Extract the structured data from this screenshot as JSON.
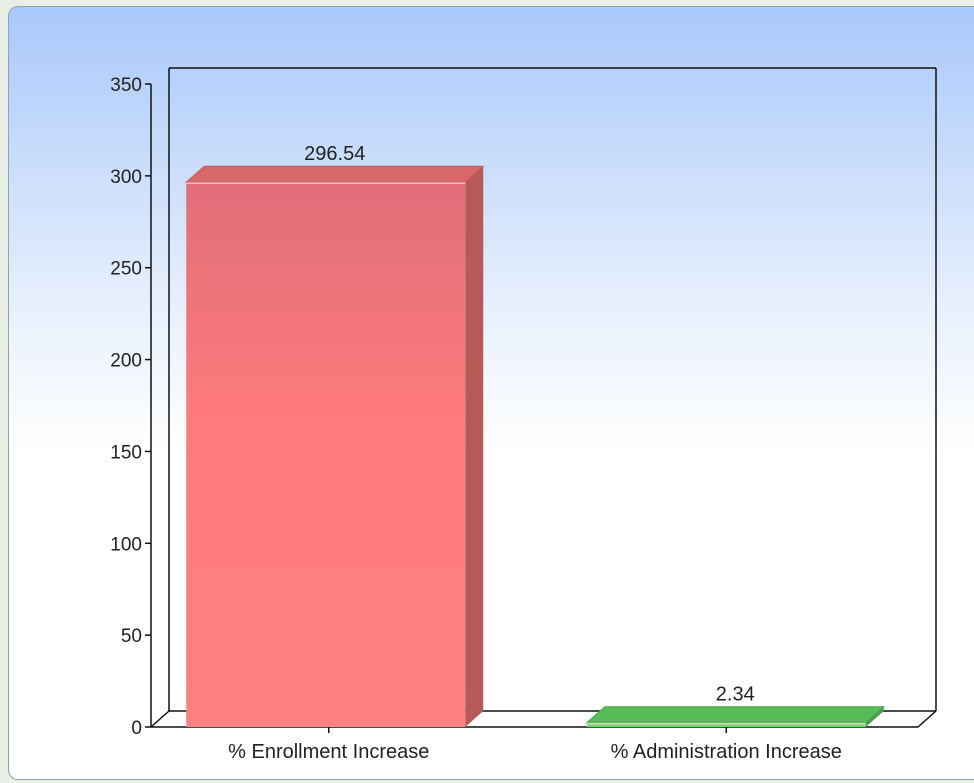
{
  "chart_data": {
    "type": "bar",
    "categories": [
      "% Enrollment Increase",
      "% Administration Increase"
    ],
    "values": [
      296.54,
      2.34
    ],
    "value_labels": [
      "296.54",
      "2.34"
    ],
    "colors": [
      "#ff7b7b",
      "#66dd66"
    ],
    "title": "",
    "xlabel": "",
    "ylabel": "",
    "ylim": [
      0,
      350
    ],
    "yticks": [
      0,
      50,
      100,
      150,
      200,
      250,
      300,
      350
    ],
    "grid": false,
    "legend": "none",
    "style": "3d"
  }
}
